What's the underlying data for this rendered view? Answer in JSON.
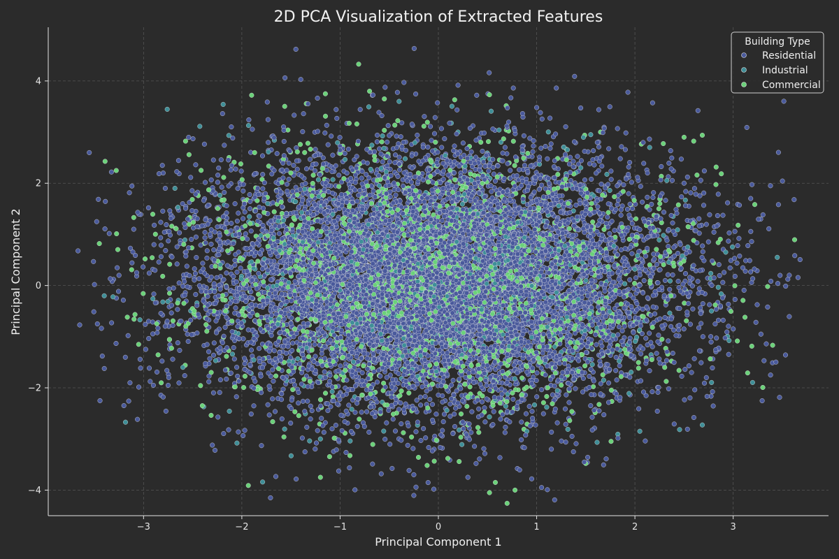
{
  "chart_data": {
    "type": "scatter",
    "title": "2D PCA Visualization of Extracted Features",
    "xlabel": "Principal Component 1",
    "ylabel": "Principal Component 2",
    "xlim": [
      -3.97,
      3.97
    ],
    "ylim": [
      -4.5,
      5.05
    ],
    "xticks": [
      -3,
      -2,
      -1,
      0,
      1,
      2,
      3
    ],
    "yticks": [
      -4,
      -2,
      0,
      2,
      4
    ],
    "grid": true,
    "legend": {
      "title": "Building Type",
      "placement": "top-right"
    },
    "distribution": {
      "description_note": "dense elliptical cloud; std approx 1.2 along PC1 and 1.25 along PC2, centered near (0, 0.1)",
      "approx_total_points": 12000
    },
    "series": [
      {
        "name": "Residential",
        "color": "#4a5a9c",
        "proportion": 0.78,
        "sample_points": [
          [
            -3.65,
            -0.77
          ],
          [
            -3.5,
            0.02
          ],
          [
            -3.47,
            -0.75
          ],
          [
            -3.42,
            -1.38
          ],
          [
            -3.32,
            0.08
          ],
          [
            -3.25,
            0.2
          ],
          [
            -3.1,
            1.1
          ],
          [
            -2.95,
            1.52
          ],
          [
            -2.9,
            -1.95
          ],
          [
            -2.8,
            2.2
          ],
          [
            -2.3,
            -3.12
          ],
          [
            -1.8,
            -3.13
          ],
          [
            -1.45,
            4.62
          ],
          [
            -1.4,
            4.03
          ],
          [
            -0.35,
            3.97
          ],
          [
            1.05,
            -3.95
          ],
          [
            1.0,
            3.48
          ],
          [
            0.95,
            -3.78
          ],
          [
            3.62,
            1.68
          ],
          [
            3.38,
            -1.75
          ],
          [
            3.28,
            1.3
          ],
          [
            3.35,
            -0.42
          ],
          [
            3.15,
            0.78
          ],
          [
            3.0,
            -0.85
          ],
          [
            0.3,
            -3.75
          ],
          [
            -0.25,
            -3.7
          ],
          [
            1.15,
            -3.2
          ],
          [
            -2.55,
            1.3
          ],
          [
            2.5,
            2.0
          ],
          [
            2.6,
            -2.58
          ]
        ]
      },
      {
        "name": "Industrial",
        "color": "#3f8f98",
        "proportion": 0.07,
        "sample_points": [
          [
            -3.4,
            -0.2
          ],
          [
            -2.05,
            -3.08
          ],
          [
            0.9,
            -2.85
          ],
          [
            -0.4,
            3.6
          ],
          [
            1.55,
            2.95
          ],
          [
            2.05,
            -2.85
          ],
          [
            -1.2,
            -3.0
          ],
          [
            2.15,
            2.7
          ],
          [
            -2.6,
            -1.6
          ],
          [
            0.2,
            3.0
          ]
        ]
      },
      {
        "name": "Commercial",
        "color": "#6bd27a",
        "proportion": 0.15,
        "sample_points": [
          [
            -3.45,
            0.82
          ],
          [
            -3.1,
            1.33
          ],
          [
            -3.05,
            -1.15
          ],
          [
            -1.9,
            3.72
          ],
          [
            -1.15,
            3.75
          ],
          [
            -0.7,
            3.8
          ],
          [
            -0.55,
            3.65
          ],
          [
            0.52,
            3.73
          ],
          [
            0.52,
            -4.05
          ],
          [
            0.78,
            -4.0
          ],
          [
            1.65,
            3.0
          ],
          [
            2.5,
            2.9
          ],
          [
            3.35,
            -0.02
          ],
          [
            3.12,
            -0.62
          ],
          [
            3.05,
            1.18
          ],
          [
            0.58,
            -3.85
          ],
          [
            1.5,
            -3.48
          ],
          [
            -1.2,
            -3.75
          ]
        ]
      }
    ]
  }
}
